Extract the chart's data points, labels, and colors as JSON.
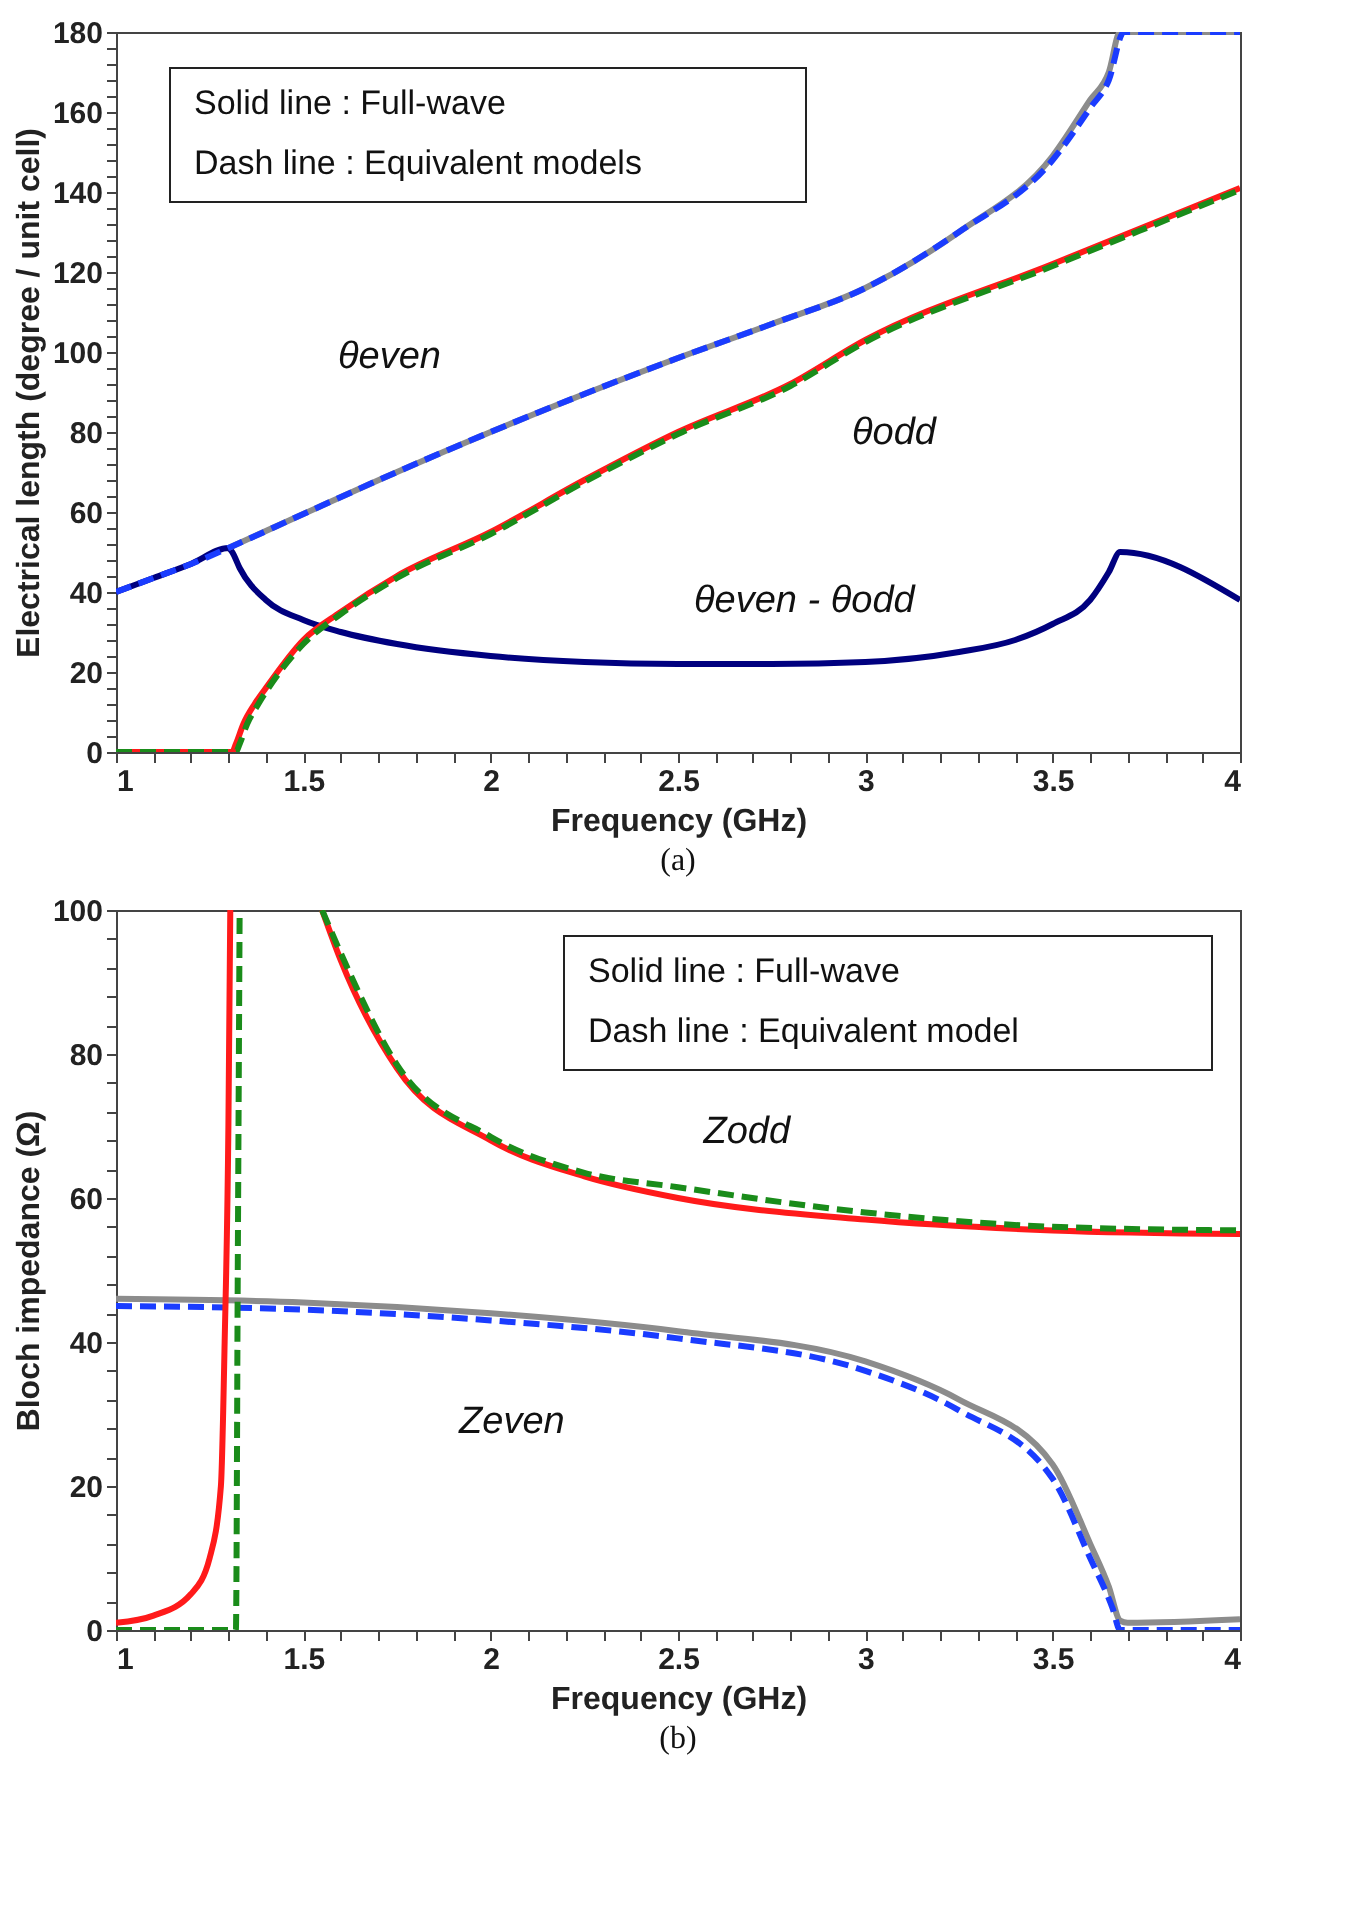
{
  "chart_data": [
    {
      "type": "line",
      "xlabel": "Frequency (GHz)",
      "ylabel": "Electrical length (degree / unit cell)",
      "xlim": [
        1,
        4
      ],
      "ylim": [
        0,
        180
      ],
      "xticks": [
        1,
        {
          "value": 1.1,
          "label": null
        },
        {
          "value": 1.2,
          "label": null
        },
        {
          "value": 1.3,
          "label": null
        },
        {
          "value": 1.4,
          "label": null
        },
        1.5,
        {
          "value": 1.6,
          "label": null
        },
        {
          "value": 1.7,
          "label": null
        },
        {
          "value": 1.8,
          "label": null
        },
        {
          "value": 1.9,
          "label": null
        },
        2,
        {
          "value": 2.1,
          "label": null
        },
        {
          "value": 2.2,
          "label": null
        },
        {
          "value": 2.3,
          "label": null
        },
        {
          "value": 2.4,
          "label": null
        },
        2.5,
        {
          "value": 2.6,
          "label": null
        },
        {
          "value": 2.7,
          "label": null
        },
        {
          "value": 2.8,
          "label": null
        },
        {
          "value": 2.9,
          "label": null
        },
        3,
        {
          "value": 3.1,
          "label": null
        },
        {
          "value": 3.2,
          "label": null
        },
        {
          "value": 3.3,
          "label": null
        },
        {
          "value": 3.4,
          "label": null
        },
        3.5,
        {
          "value": 3.6,
          "label": null
        },
        {
          "value": 3.7,
          "label": null
        },
        {
          "value": 3.8,
          "label": null
        },
        {
          "value": 3.9,
          "label": null
        },
        4
      ],
      "yticks": [
        0,
        {
          "value": 4,
          "label": null
        },
        {
          "value": 8,
          "label": null
        },
        {
          "value": 12,
          "label": null
        },
        {
          "value": 16,
          "label": null
        },
        20,
        {
          "value": 24,
          "label": null
        },
        {
          "value": 28,
          "label": null
        },
        {
          "value": 32,
          "label": null
        },
        {
          "value": 36,
          "label": null
        },
        40,
        {
          "value": 44,
          "label": null
        },
        {
          "value": 48,
          "label": null
        },
        {
          "value": 52,
          "label": null
        },
        {
          "value": 56,
          "label": null
        },
        60,
        {
          "value": 64,
          "label": null
        },
        {
          "value": 68,
          "label": null
        },
        {
          "value": 72,
          "label": null
        },
        {
          "value": 76,
          "label": null
        },
        80,
        {
          "value": 84,
          "label": null
        },
        {
          "value": 88,
          "label": null
        },
        {
          "value": 92,
          "label": null
        },
        {
          "value": 96,
          "label": null
        },
        100,
        {
          "value": 104,
          "label": null
        },
        {
          "value": 108,
          "label": null
        },
        {
          "value": 112,
          "label": null
        },
        {
          "value": 116,
          "label": null
        },
        120,
        {
          "value": 124,
          "label": null
        },
        {
          "value": 128,
          "label": null
        },
        {
          "value": 132,
          "label": null
        },
        {
          "value": 136,
          "label": null
        },
        140,
        {
          "value": 144,
          "label": null
        },
        {
          "value": 148,
          "label": null
        },
        {
          "value": 152,
          "label": null
        },
        {
          "value": 156,
          "label": null
        },
        160,
        {
          "value": 164,
          "label": null
        },
        {
          "value": 168,
          "label": null
        },
        {
          "value": 172,
          "label": null
        },
        {
          "value": 176,
          "label": null
        },
        180
      ],
      "series": [
        {
          "color": "#00007f",
          "line_style": "solid",
          "x": [
            1,
            1.1,
            1.2,
            1.3,
            1.31,
            1.33,
            1.4,
            1.5,
            1.6,
            1.75,
            2,
            2.25,
            2.5,
            2.75,
            3,
            3.25,
            3.4,
            3.5,
            3.6,
            3.65,
            3.68,
            4
          ],
          "values": [
            40,
            43.5,
            47,
            51,
            50,
            46,
            38,
            33,
            30,
            27,
            24,
            22.5,
            22,
            22,
            22.5,
            25,
            28,
            32,
            38,
            45,
            50,
            38
          ]
        },
        {
          "color": "#8c8c8c",
          "line_style": "solid",
          "x": [
            1.3,
            1.5,
            1.75,
            2,
            2.25,
            2.5,
            2.75,
            3,
            3.25,
            3.5,
            3.6,
            3.65,
            3.68,
            4
          ],
          "values": [
            51,
            59.5,
            70,
            80,
            89.5,
            98.5,
            107,
            116,
            130,
            149,
            163,
            170,
            180,
            180
          ]
        },
        {
          "color": "#1a3cff",
          "line_style": "dashed",
          "x": [
            1,
            1.1,
            1.2,
            1.3,
            1.5,
            1.75,
            2,
            2.25,
            2.5,
            2.75,
            3,
            3.25,
            3.5,
            3.6,
            3.65,
            3.69,
            4
          ],
          "values": [
            40,
            43.5,
            47,
            51,
            59.5,
            70,
            80,
            89.5,
            98.5,
            107,
            116,
            130,
            148,
            161,
            168,
            180,
            180
          ]
        },
        {
          "color": "#ff1a1a",
          "line_style": "solid",
          "x": [
            1,
            1.31,
            1.32,
            1.34,
            1.37,
            1.4,
            1.5,
            1.6,
            1.75,
            2,
            2.25,
            2.5,
            2.8,
            3,
            3.5,
            4
          ],
          "values": [
            0,
            0,
            2,
            7,
            12,
            16,
            28,
            35,
            44,
            55,
            68,
            80,
            92,
            103,
            122,
            141
          ]
        },
        {
          "color": "#1a8c1a",
          "line_style": "dashed",
          "x": [
            1,
            1.32,
            1.33,
            1.35,
            1.38,
            1.4,
            1.5,
            1.6,
            1.75,
            2,
            2.25,
            2.5,
            2.8,
            3,
            3.5,
            4
          ],
          "values": [
            0,
            0,
            2,
            7,
            12,
            15,
            27,
            34.5,
            43.5,
            54.5,
            67.5,
            79.5,
            91.5,
            102.5,
            121.5,
            140.5
          ]
        }
      ],
      "annotations": [
        "Solid line : Full-wave",
        "Dash line : Equivalent models",
        {
          "text": "θeven",
          "x": 1.97,
          "y": 80
        },
        {
          "text": "θodd",
          "x": 2.82,
          "y": 93
        },
        {
          "text": "θeven - θodd",
          "x": 2.33,
          "y": 22
        },
        "(a)"
      ]
    },
    {
      "type": "line",
      "xlabel": "Frequency (GHz)",
      "ylabel": "Bloch impedance (Ω)",
      "xlim": [
        1,
        4
      ],
      "ylim": [
        0,
        100
      ],
      "xticks": [
        1,
        {
          "value": 1.1,
          "label": null
        },
        {
          "value": 1.2,
          "label": null
        },
        {
          "value": 1.3,
          "label": null
        },
        {
          "value": 1.4,
          "label": null
        },
        1.5,
        {
          "value": 1.6,
          "label": null
        },
        {
          "value": 1.7,
          "label": null
        },
        {
          "value": 1.8,
          "label": null
        },
        {
          "value": 1.9,
          "label": null
        },
        2,
        {
          "value": 2.1,
          "label": null
        },
        {
          "value": 2.2,
          "label": null
        },
        {
          "value": 2.3,
          "label": null
        },
        {
          "value": 2.4,
          "label": null
        },
        2.5,
        {
          "value": 2.6,
          "label": null
        },
        {
          "value": 2.7,
          "label": null
        },
        {
          "value": 2.8,
          "label": null
        },
        {
          "value": 2.9,
          "label": null
        },
        3,
        {
          "value": 3.1,
          "label": null
        },
        {
          "value": 3.2,
          "label": null
        },
        {
          "value": 3.3,
          "label": null
        },
        {
          "value": 3.4,
          "label": null
        },
        3.5,
        {
          "value": 3.6,
          "label": null
        },
        {
          "value": 3.7,
          "label": null
        },
        {
          "value": 3.8,
          "label": null
        },
        {
          "value": 3.9,
          "label": null
        },
        4
      ],
      "yticks": [
        0,
        {
          "value": 4,
          "label": null
        },
        {
          "value": 8,
          "label": null
        },
        {
          "value": 12,
          "label": null
        },
        {
          "value": 16,
          "label": null
        },
        20,
        {
          "value": 24,
          "label": null
        },
        {
          "value": 28,
          "label": null
        },
        {
          "value": 32,
          "label": null
        },
        {
          "value": 36,
          "label": null
        },
        40,
        {
          "value": 44,
          "label": null
        },
        {
          "value": 48,
          "label": null
        },
        {
          "value": 52,
          "label": null
        },
        {
          "value": 56,
          "label": null
        },
        60,
        {
          "value": 64,
          "label": null
        },
        {
          "value": 68,
          "label": null
        },
        {
          "value": 72,
          "label": null
        },
        {
          "value": 76,
          "label": null
        },
        80,
        {
          "value": 84,
          "label": null
        },
        {
          "value": 88,
          "label": null
        },
        {
          "value": 92,
          "label": null
        },
        {
          "value": 96,
          "label": null
        },
        100
      ],
      "series": [
        {
          "color": "#8c8c8c",
          "line_style": "solid",
          "x": [
            1,
            1.5,
            2,
            2.5,
            3,
            3.25,
            3.5,
            3.6,
            3.65,
            3.68,
            3.7,
            4
          ],
          "values": [
            46,
            45.5,
            44,
            41.5,
            37.3,
            32,
            23,
            12,
            6,
            1.3,
            1,
            1.5
          ]
        },
        {
          "color": "#1a3cff",
          "line_style": "dashed",
          "x": [
            1,
            1.5,
            2,
            2.5,
            3,
            3.25,
            3.5,
            3.6,
            3.66,
            3.68,
            4
          ],
          "values": [
            45,
            44.5,
            43,
            40.5,
            36,
            30.5,
            21,
            10,
            3,
            0,
            0
          ]
        },
        {
          "color": "#ff1a1a",
          "line_style": "solid",
          "x": [
            1,
            1.1,
            1.2,
            1.25,
            1.28,
            1.29,
            1.3,
            1.305,
            1.4,
            1.55,
            1.6,
            1.75,
            2,
            2.25,
            2.5,
            3,
            3.5,
            4
          ],
          "values": [
            1,
            2,
            5,
            10,
            20,
            40,
            70,
            100,
            null,
            100,
            93,
            78,
            68,
            63,
            60,
            57,
            55.5,
            55
          ]
        },
        {
          "color": "#1a8c1a",
          "line_style": "dashed",
          "x": [
            1,
            1.32,
            1.325,
            1.33,
            1.4,
            1.55,
            1.6,
            1.75,
            2,
            2.25,
            2.5,
            3,
            3.5,
            4
          ],
          "values": [
            0,
            0,
            50,
            100,
            null,
            100,
            94,
            78.5,
            68.5,
            63.5,
            61.5,
            58,
            56,
            55.5
          ]
        }
      ],
      "annotations": [
        "Solid line : Full-wave",
        "Dash line : Equivalent model",
        {
          "text": "Zodd",
          "x": 2.47,
          "y": 61
        },
        {
          "text": "Zeven",
          "x": 2.03,
          "y": 43.5
        },
        "(b)"
      ]
    }
  ]
}
